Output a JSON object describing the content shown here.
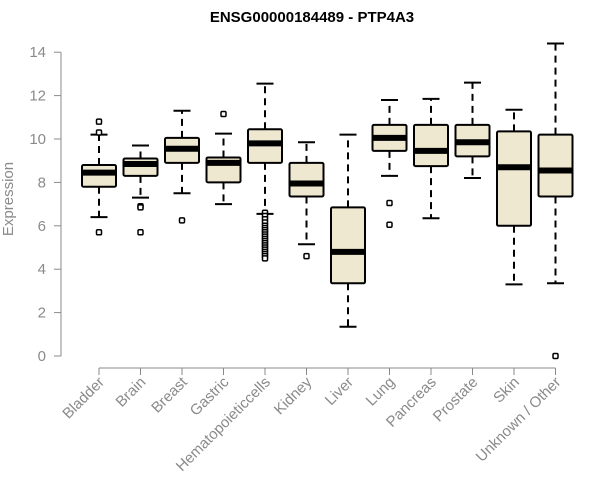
{
  "chart_data": {
    "type": "boxplot",
    "title": "ENSG00000184489 - PTP4A3",
    "xlabel": "",
    "ylabel": "Expression",
    "ylim": [
      0,
      14.5
    ],
    "yticks": [
      0,
      2,
      4,
      6,
      8,
      10,
      12,
      14
    ],
    "box_fill": "#efe8d0",
    "categories": [
      "Bladder",
      "Brain",
      "Breast",
      "Gastric",
      "Hematopoietic cells",
      "Kidney",
      "Liver",
      "Lung",
      "Pancreas",
      "Prostate",
      "Skin",
      "Unknown / Other"
    ],
    "tick_labels": [
      "Bladder",
      "Brain",
      "Breast",
      "Gastric",
      "Hematopoieticcells",
      "Kidney",
      "Liver",
      "Lung",
      "Pancreas",
      "Prostate",
      "Skin",
      "Unknown / Other"
    ],
    "boxes": [
      {
        "name": "Bladder",
        "whisker_low": 6.4,
        "q1": 7.8,
        "median": 8.45,
        "q3": 8.8,
        "whisker_high": 10.2,
        "outliers": [
          5.7,
          10.3,
          10.8
        ]
      },
      {
        "name": "Brain",
        "whisker_low": 7.3,
        "q1": 8.3,
        "median": 8.85,
        "q3": 9.1,
        "whisker_high": 9.7,
        "outliers": [
          6.9,
          6.85,
          5.7
        ]
      },
      {
        "name": "Breast",
        "whisker_low": 7.5,
        "q1": 8.9,
        "median": 9.55,
        "q3": 10.05,
        "whisker_high": 11.3,
        "outliers": [
          6.25
        ]
      },
      {
        "name": "Gastric",
        "whisker_low": 7.0,
        "q1": 8.0,
        "median": 8.9,
        "q3": 9.15,
        "whisker_high": 10.25,
        "outliers": [
          11.15
        ]
      },
      {
        "name": "Hematopoietic cells",
        "whisker_low": 6.55,
        "q1": 8.9,
        "median": 9.8,
        "q3": 10.45,
        "whisker_high": 12.55,
        "outliers": [
          6.6,
          6.45,
          6.3,
          6.15,
          6.0,
          5.9,
          5.8,
          5.7,
          5.6,
          5.5,
          5.4,
          5.3,
          5.2,
          5.1,
          5.0,
          4.9,
          4.8,
          4.7,
          4.6,
          4.5
        ]
      },
      {
        "name": "Kidney",
        "whisker_low": 5.15,
        "q1": 7.35,
        "median": 7.95,
        "q3": 8.9,
        "whisker_high": 9.85,
        "outliers": [
          4.6
        ]
      },
      {
        "name": "Liver",
        "whisker_low": 1.35,
        "q1": 3.35,
        "median": 4.8,
        "q3": 6.85,
        "whisker_high": 10.2,
        "outliers": []
      },
      {
        "name": "Lung",
        "whisker_low": 8.3,
        "q1": 9.45,
        "median": 10.05,
        "q3": 10.65,
        "whisker_high": 11.8,
        "outliers": [
          7.05,
          6.05
        ]
      },
      {
        "name": "Pancreas",
        "whisker_low": 6.35,
        "q1": 8.75,
        "median": 9.45,
        "q3": 10.65,
        "whisker_high": 11.85,
        "outliers": []
      },
      {
        "name": "Prostate",
        "whisker_low": 8.2,
        "q1": 9.2,
        "median": 9.85,
        "q3": 10.65,
        "whisker_high": 12.6,
        "outliers": []
      },
      {
        "name": "Skin",
        "whisker_low": 3.3,
        "q1": 6.0,
        "median": 8.7,
        "q3": 10.35,
        "whisker_high": 11.35,
        "outliers": []
      },
      {
        "name": "Unknown / Other",
        "whisker_low": 3.35,
        "q1": 7.35,
        "median": 8.55,
        "q3": 10.2,
        "whisker_high": 14.4,
        "outliers": [
          0.0
        ]
      }
    ]
  }
}
